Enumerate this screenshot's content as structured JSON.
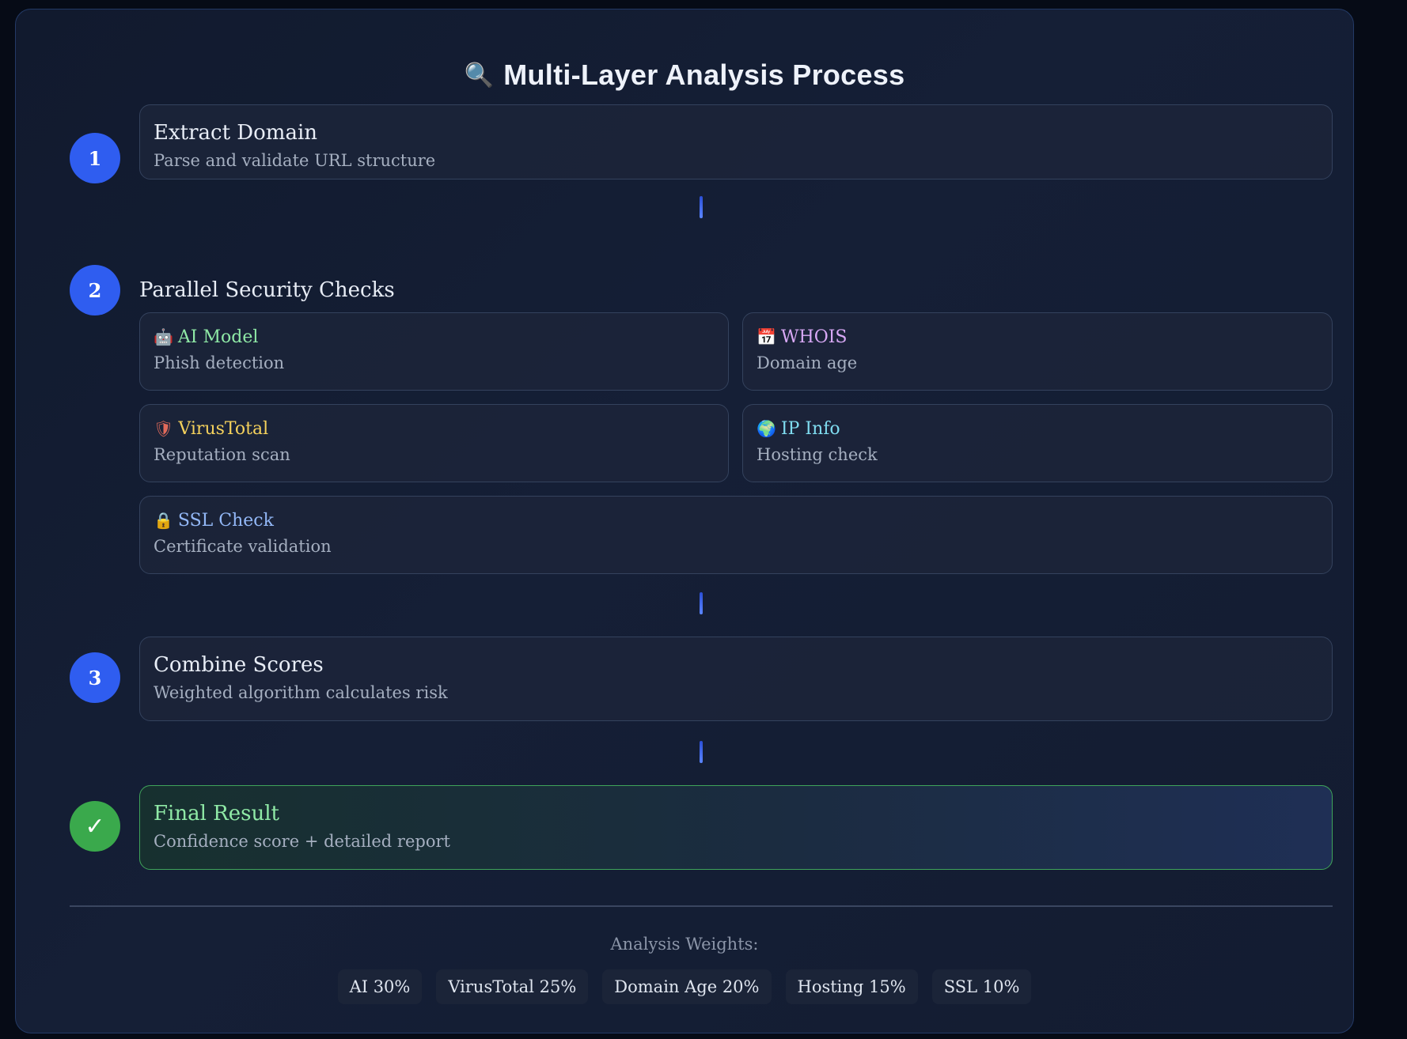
{
  "title": {
    "icon": "🔍",
    "text": "Multi-Layer Analysis Process"
  },
  "steps": [
    {
      "number": "1",
      "title": "Extract Domain",
      "description": "Parse and validate URL structure"
    },
    {
      "number": "2",
      "title": "Parallel Security Checks"
    },
    {
      "number": "3",
      "title": "Combine Scores",
      "description": "Weighted algorithm calculates risk"
    },
    {
      "number": "✓",
      "title": "Final Result",
      "description": "Confidence score + detailed report"
    }
  ],
  "checks": [
    {
      "icon": "🤖",
      "title": "AI Model",
      "description": "Phish detection",
      "color": "#8fe9a6"
    },
    {
      "icon": "📅",
      "title": "WHOIS",
      "description": "Domain age",
      "color": "#d8a8f5"
    },
    {
      "icon": "🛡",
      "title": "VirusTotal",
      "description": "Reputation scan",
      "color": "#f4d15c"
    },
    {
      "icon": "🌍",
      "title": "IP Info",
      "description": "Hosting check",
      "color": "#7fdcf0"
    },
    {
      "icon": "🔒",
      "title": "SSL Check",
      "description": "Certificate validation",
      "color": "#93b8f7"
    }
  ],
  "weights": {
    "label": "Analysis Weights:",
    "items": [
      "AI 30%",
      "VirusTotal 25%",
      "Domain Age 20%",
      "Hosting 15%",
      "SSL 10%"
    ]
  },
  "colors": {
    "step_circle": "#2f5df0",
    "final_circle": "#3aa94c",
    "final_border": "#3fa45a",
    "connector": "#3b63e8"
  }
}
